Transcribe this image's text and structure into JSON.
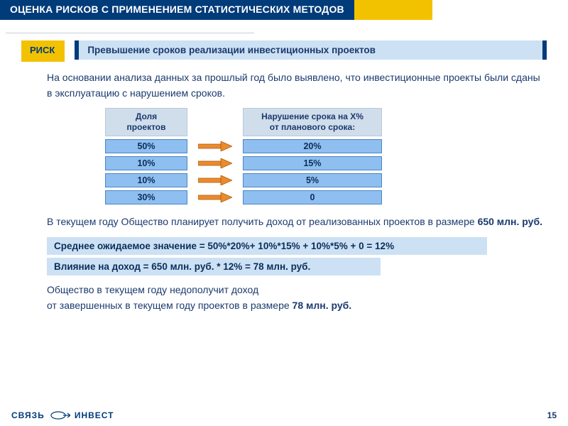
{
  "colors": {
    "navy": "#003b7a",
    "yellow": "#f2c200",
    "lightBlue": "#cde1f5",
    "cellBlue": "#8fbef0",
    "headerGrey": "#d0ddea",
    "arrowFill": "#e98b2e",
    "arrowStroke": "#b25c0e",
    "text": "#1a3a6e"
  },
  "title": "ОЦЕНКА РИСКОВ С ПРИМЕНЕНИЕМ СТАТИСТИЧЕСКИХ МЕТОДОВ",
  "risk": {
    "tag": "РИСК",
    "desc": "Превышение сроков реализации инвестиционных проектов"
  },
  "intro": "На основании анализа данных за прошлый год было выявлено, что инвестиционные проекты были сданы в эксплуатацию с нарушением сроков.",
  "table": {
    "headerLeft": "Доля\nпроектов",
    "headerRight": "Нарушение срока на Х%\nот планового срока:",
    "rows": [
      {
        "left": "50%",
        "right": "20%"
      },
      {
        "left": "10%",
        "right": "15%"
      },
      {
        "left": "10%",
        "right": "5%"
      },
      {
        "left": "30%",
        "right": "0"
      }
    ]
  },
  "mid1_a": "В текущем году Общество планирует получить доход от реализованных проектов в размере ",
  "mid1_b": "650 млн. руб.",
  "calc1": "Среднее ожидаемое значение = 50%*20%+ 10%*15% + 10%*5% + 0 = 12%",
  "calc2": "Влияние на доход = 650 млн. руб. * 12% = 78 млн. руб.",
  "out_a": "Общество в текущем году недополучит доход",
  "out_b": "от завершенных в текущем году проектов в размере ",
  "out_c": "78 млн. руб.",
  "logoLeft": "СВЯЗЬ",
  "logoRight": "ИНВЕСТ",
  "pageNum": "15"
}
